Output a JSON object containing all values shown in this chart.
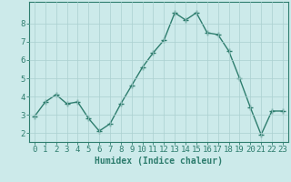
{
  "x": [
    0,
    1,
    2,
    3,
    4,
    5,
    6,
    7,
    8,
    9,
    10,
    11,
    12,
    13,
    14,
    15,
    16,
    17,
    18,
    19,
    20,
    21,
    22,
    23
  ],
  "y": [
    2.9,
    3.7,
    4.1,
    3.6,
    3.7,
    2.8,
    2.1,
    2.5,
    3.6,
    4.6,
    5.6,
    6.4,
    7.1,
    8.6,
    8.2,
    8.6,
    7.5,
    7.4,
    6.5,
    5.0,
    3.4,
    1.9,
    3.2,
    3.2
  ],
  "xlabel": "Humidex (Indice chaleur)",
  "ylim": [
    1.5,
    9.2
  ],
  "xlim": [
    -0.5,
    23.5
  ],
  "yticks": [
    2,
    3,
    4,
    5,
    6,
    7,
    8
  ],
  "xticks": [
    0,
    1,
    2,
    3,
    4,
    5,
    6,
    7,
    8,
    9,
    10,
    11,
    12,
    13,
    14,
    15,
    16,
    17,
    18,
    19,
    20,
    21,
    22,
    23
  ],
  "line_color": "#2e7d6e",
  "marker": "+",
  "marker_size": 4,
  "bg_color": "#cceaea",
  "grid_color": "#aad0d0",
  "axis_color": "#2e7d6e",
  "tick_label_color": "#2e7d6e",
  "xlabel_color": "#2e7d6e",
  "xlabel_fontsize": 7,
  "tick_fontsize": 6.5,
  "line_width": 1.0
}
